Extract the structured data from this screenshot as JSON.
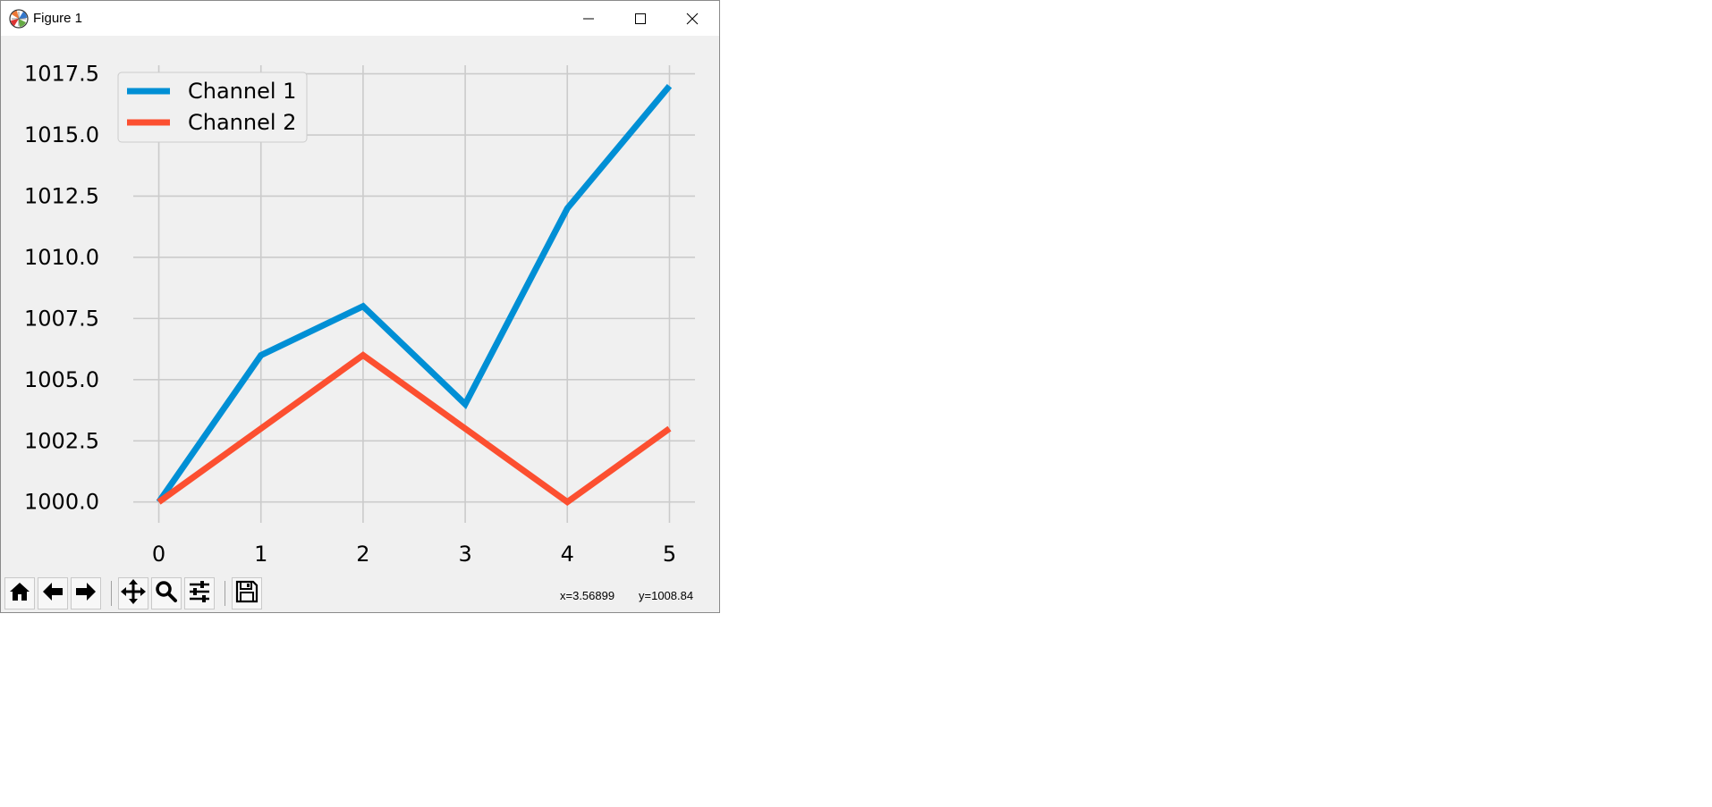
{
  "window": {
    "title": "Figure 1"
  },
  "icons": {
    "app": "matplotlib-icon",
    "minimize": "minimize-icon",
    "maximize": "maximize-icon",
    "close": "close-icon"
  },
  "toolbar": {
    "buttons": [
      "home-icon",
      "back-icon",
      "forward-icon",
      "pan-icon",
      "zoom-icon",
      "configure-subplots-icon",
      "save-icon"
    ],
    "coords": {
      "x": "x=3.56899",
      "y": "y=1008.84"
    }
  },
  "chart_data": {
    "type": "line",
    "title": "",
    "xlabel": "",
    "ylabel": "",
    "x": [
      0,
      1,
      2,
      3,
      4,
      5
    ],
    "xticks": [
      "0",
      "1",
      "2",
      "3",
      "4",
      "5"
    ],
    "yticks": [
      "1000.0",
      "1002.5",
      "1005.0",
      "1007.5",
      "1010.0",
      "1012.5",
      "1015.0",
      "1017.5"
    ],
    "ylim": [
      999.15,
      1017.85
    ],
    "xlim": [
      -0.25,
      5.25
    ],
    "grid": true,
    "legend_position": "upper-left",
    "series": [
      {
        "name": "Channel 1",
        "values": [
          1000,
          1006,
          1008,
          1004,
          1012,
          1017
        ],
        "color": "#008fd5"
      },
      {
        "name": "Channel 2",
        "values": [
          1000,
          1003,
          1006,
          1003,
          1000,
          1003
        ],
        "color": "#fc4f30"
      }
    ]
  }
}
